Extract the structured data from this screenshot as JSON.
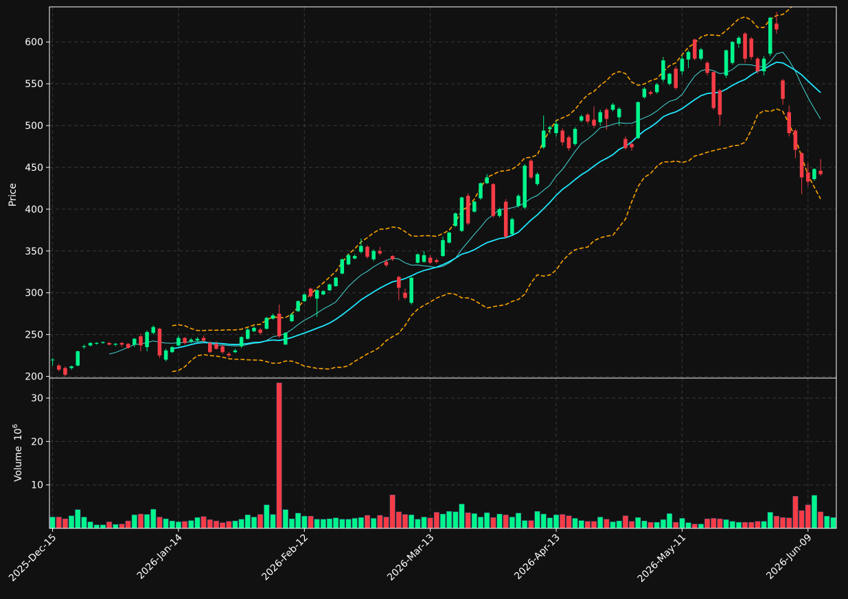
{
  "chart_data": {
    "type": "candlestick",
    "colors": {
      "background": "#111111",
      "up": "#00f58c",
      "down": "#f53c46",
      "grid": "#3a3a3a",
      "ma_slow": "#1ee8ff",
      "ma_fast": "#46dcdc",
      "band": "#ffa500",
      "axis": "#ffffff"
    },
    "price_axis": {
      "label": "Price",
      "ylim": [
        198,
        642
      ],
      "ticks": [
        200,
        250,
        300,
        350,
        400,
        450,
        500,
        550,
        600
      ]
    },
    "volume_axis": {
      "label": "Volume",
      "exponent_label": "10",
      "exponent": "6",
      "ylim": [
        0,
        34.6
      ],
      "ticks": [
        10,
        20,
        30
      ]
    },
    "x_axis": {
      "xlim": [
        -0.5,
        124.5
      ],
      "ticks": [
        {
          "index": 0,
          "label": "2025-Dec-15"
        },
        {
          "index": 20,
          "label": "2026-Jan-14"
        },
        {
          "index": 40,
          "label": "2026-Feb-12"
        },
        {
          "index": 60,
          "label": "2026-Mar-13"
        },
        {
          "index": 80,
          "label": "2026-Apr-13"
        },
        {
          "index": 100,
          "label": "2026-May-11"
        },
        {
          "index": 120,
          "label": "2026-Jun-09"
        }
      ]
    },
    "candles": [
      [
        220,
        220,
        222,
        213
      ],
      [
        213,
        208,
        215,
        206
      ],
      [
        210,
        202,
        212,
        200
      ],
      [
        210,
        212,
        213,
        208
      ],
      [
        213,
        230,
        231,
        212
      ],
      [
        235,
        236,
        238,
        233
      ],
      [
        237,
        240,
        241,
        236
      ],
      [
        239,
        240,
        241,
        238
      ],
      [
        240,
        241,
        242,
        239
      ],
      [
        240,
        238,
        241,
        237
      ],
      [
        238,
        239,
        240,
        236
      ],
      [
        240,
        238,
        241,
        235
      ],
      [
        239,
        234,
        240,
        233
      ],
      [
        238,
        245,
        246,
        235
      ],
      [
        248,
        237,
        251,
        230
      ],
      [
        235,
        253,
        255,
        230
      ],
      [
        252,
        259,
        261,
        250
      ],
      [
        257,
        225,
        258,
        222
      ],
      [
        220,
        231,
        233,
        218
      ],
      [
        229,
        235,
        236,
        228
      ],
      [
        237,
        246,
        249,
        236
      ],
      [
        246,
        240,
        247,
        238
      ],
      [
        242,
        244,
        246,
        240
      ],
      [
        243,
        245,
        247,
        242
      ],
      [
        246,
        243,
        249,
        241
      ],
      [
        240,
        229,
        242,
        228
      ],
      [
        239,
        233,
        242,
        232
      ],
      [
        236,
        229,
        238,
        227
      ],
      [
        227,
        225,
        229,
        223
      ],
      [
        229,
        231,
        233,
        228
      ],
      [
        236,
        247,
        248,
        234
      ],
      [
        245,
        256,
        258,
        244
      ],
      [
        254,
        258,
        260,
        253
      ],
      [
        256,
        252,
        258,
        250
      ],
      [
        257,
        270,
        271,
        256
      ],
      [
        269,
        273,
        275,
        268
      ],
      [
        275,
        248,
        286,
        246
      ],
      [
        238,
        252,
        253,
        240
      ],
      [
        266,
        274,
        276,
        265
      ],
      [
        278,
        290,
        291,
        277
      ],
      [
        290,
        298,
        299,
        289
      ],
      [
        305,
        296,
        306,
        294
      ],
      [
        293,
        303,
        304,
        271
      ],
      [
        298,
        302,
        303,
        297
      ],
      [
        303,
        310,
        311,
        302
      ],
      [
        308,
        318,
        319,
        307
      ],
      [
        323,
        340,
        341,
        322
      ],
      [
        334,
        345,
        347,
        333
      ],
      [
        341,
        344,
        346,
        340
      ],
      [
        349,
        356,
        365,
        347
      ],
      [
        355,
        343,
        357,
        341
      ],
      [
        340,
        350,
        352,
        338
      ],
      [
        350,
        347,
        355,
        345
      ],
      [
        337,
        333,
        340,
        331
      ],
      [
        344,
        340,
        345,
        338
      ],
      [
        319,
        306,
        320,
        291
      ],
      [
        300,
        294,
        305,
        292
      ],
      [
        288,
        318,
        319,
        286
      ],
      [
        336,
        346,
        347,
        335
      ],
      [
        337,
        345,
        350,
        336
      ],
      [
        342,
        336,
        345,
        334
      ],
      [
        339,
        337,
        341,
        335
      ],
      [
        344,
        363,
        367,
        343
      ],
      [
        360,
        372,
        373,
        359
      ],
      [
        380,
        395,
        396,
        379
      ],
      [
        374,
        414,
        415,
        373
      ],
      [
        416,
        383,
        419,
        381
      ],
      [
        397,
        409,
        410,
        396
      ],
      [
        413,
        431,
        432,
        411
      ],
      [
        431,
        438,
        442,
        430
      ],
      [
        430,
        392,
        431,
        390
      ],
      [
        392,
        400,
        402,
        390
      ],
      [
        409,
        367,
        412,
        365
      ],
      [
        370,
        388,
        390,
        369
      ],
      [
        404,
        416,
        418,
        402
      ],
      [
        402,
        452,
        454,
        400
      ],
      [
        458,
        438,
        460,
        436
      ],
      [
        430,
        442,
        444,
        428
      ],
      [
        474,
        494,
        512,
        472
      ],
      [
        496,
        498,
        500,
        490
      ],
      [
        491,
        502,
        506,
        487
      ],
      [
        494,
        480,
        497,
        476
      ],
      [
        486,
        473,
        488,
        470
      ],
      [
        478,
        496,
        498,
        476
      ],
      [
        506,
        511,
        513,
        504
      ],
      [
        513,
        505,
        515,
        502
      ],
      [
        507,
        500,
        523,
        497
      ],
      [
        504,
        516,
        519,
        500
      ],
      [
        519,
        508,
        521,
        495
      ],
      [
        519,
        525,
        527,
        517
      ],
      [
        510,
        520,
        522,
        500
      ],
      [
        484,
        473,
        487,
        471
      ],
      [
        478,
        474,
        480,
        470
      ],
      [
        485,
        528,
        529,
        484
      ],
      [
        534,
        544,
        546,
        532
      ],
      [
        540,
        538,
        542,
        536
      ],
      [
        540,
        549,
        551,
        538
      ],
      [
        555,
        578,
        582,
        552
      ],
      [
        550,
        562,
        563,
        548
      ],
      [
        568,
        545,
        571,
        543
      ],
      [
        565,
        580,
        584,
        561
      ],
      [
        579,
        588,
        590,
        569
      ],
      [
        603,
        580,
        604,
        578
      ],
      [
        580,
        591,
        593,
        578
      ],
      [
        575,
        563,
        577,
        560
      ],
      [
        564,
        521,
        566,
        519
      ],
      [
        542,
        513,
        544,
        500
      ],
      [
        560,
        590,
        591,
        557
      ],
      [
        575,
        600,
        601,
        573
      ],
      [
        598,
        605,
        607,
        593
      ],
      [
        610,
        580,
        612,
        575
      ],
      [
        604,
        582,
        606,
        579
      ],
      [
        580,
        565,
        582,
        562
      ],
      [
        565,
        580,
        583,
        560
      ],
      [
        586,
        629,
        630,
        583
      ],
      [
        622,
        615,
        636,
        610
      ],
      [
        554,
        532,
        556,
        525
      ],
      [
        516,
        491,
        524,
        487
      ],
      [
        494,
        471,
        496,
        461
      ],
      [
        467,
        438,
        468,
        418
      ],
      [
        444,
        433,
        455,
        428
      ],
      [
        436,
        448,
        449,
        434
      ],
      [
        446,
        442,
        460,
        440
      ]
    ],
    "volumes": [
      2.6,
      2.6,
      2.2,
      2.9,
      4.3,
      2.6,
      1.5,
      0.8,
      0.8,
      1.5,
      0.9,
      1.0,
      1.7,
      3.1,
      3.3,
      3.2,
      4.4,
      2.6,
      2.2,
      1.7,
      1.5,
      1.6,
      1.8,
      2.5,
      2.7,
      2.0,
      1.7,
      1.3,
      1.6,
      1.7,
      2.1,
      3.1,
      2.6,
      3.2,
      5.4,
      3.2,
      33.5,
      4.3,
      2.2,
      3.5,
      2.8,
      2.8,
      2.1,
      2.1,
      2.2,
      2.4,
      2.1,
      2.1,
      2.3,
      2.5,
      3.0,
      2.3,
      3.0,
      2.6,
      7.7,
      3.8,
      3.2,
      3.1,
      2.1,
      2.6,
      2.4,
      3.7,
      3.3,
      3.9,
      3.8,
      5.6,
      3.6,
      3.4,
      2.6,
      3.6,
      2.5,
      3.3,
      3.1,
      2.6,
      3.5,
      1.8,
      1.8,
      3.9,
      3.3,
      2.4,
      3.1,
      3.2,
      2.9,
      2.3,
      1.8,
      1.6,
      1.6,
      2.6,
      2.1,
      1.5,
      1.7,
      2.9,
      1.6,
      2.5,
      1.7,
      1.4,
      1.4,
      2.0,
      3.4,
      1.4,
      2.3,
      1.3,
      1.0,
      1.0,
      2.2,
      2.3,
      2.2,
      2.0,
      1.6,
      1.4,
      1.4,
      1.4,
      1.6,
      1.6,
      3.7,
      2.8,
      2.5,
      2.4,
      7.4,
      4.1,
      5.4,
      7.6,
      3.8,
      2.8,
      2.5
    ],
    "overlays": {
      "band_start": 20,
      "ma_slow_start": 20,
      "ma_fast_start": 9
    }
  }
}
